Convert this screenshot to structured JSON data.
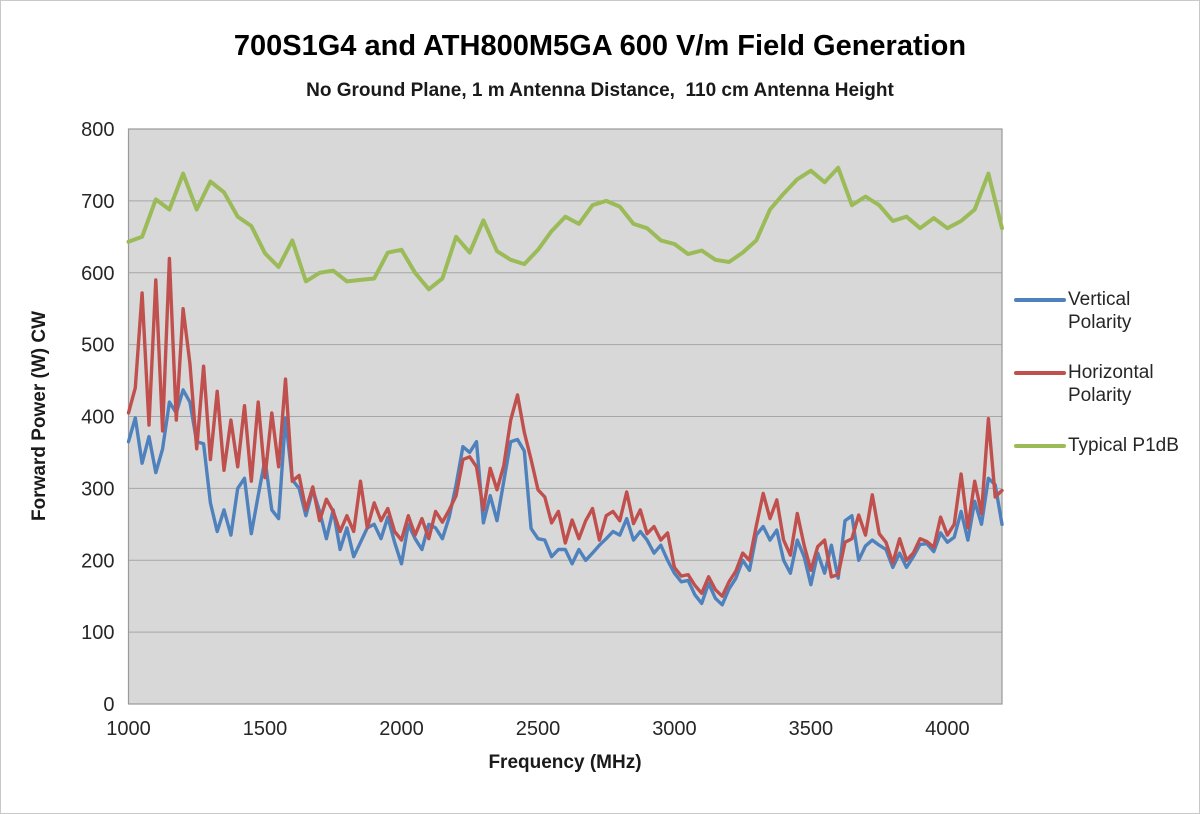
{
  "chart_data": {
    "type": "line",
    "title": "700S1G4 and ATH800M5GA 600 V/m Field Generation",
    "subtitle": "No Ground Plane, 1 m Antenna Distance,  110 cm Antenna Height",
    "xlabel": "Frequency (MHz)",
    "ylabel": "Forward Power (W) CW",
    "xlim": [
      1000,
      4200
    ],
    "ylim": [
      0,
      800
    ],
    "xticks": [
      1000,
      1500,
      2000,
      2500,
      3000,
      3500,
      4000
    ],
    "yticks": [
      0,
      100,
      200,
      300,
      400,
      500,
      600,
      700,
      800
    ],
    "grid": "horizontal",
    "legend_position": "right",
    "colors": {
      "plot_bg": "#d8d8d8",
      "plot_border": "#9a9a9a",
      "gridline": "#a6a6a6",
      "tick_text": "#262626",
      "vertical_polarity": "#4f81bd",
      "horizontal_polarity": "#c0504d",
      "typical_p1db": "#9bbb59"
    },
    "series": [
      {
        "name": "Vertical Polarity",
        "color": "#4f81bd",
        "stroke_width": 3.4,
        "x_start": 1000,
        "x_step": 25,
        "values": [
          365,
          398,
          335,
          372,
          322,
          355,
          420,
          405,
          437,
          420,
          365,
          362,
          280,
          240,
          270,
          235,
          300,
          314,
          237,
          290,
          340,
          270,
          258,
          398,
          312,
          300,
          262,
          298,
          268,
          230,
          270,
          215,
          245,
          205,
          225,
          245,
          250,
          230,
          260,
          225,
          195,
          250,
          230,
          215,
          250,
          245,
          230,
          260,
          305,
          358,
          350,
          365,
          252,
          290,
          255,
          310,
          365,
          368,
          352,
          244,
          230,
          228,
          205,
          215,
          215,
          195,
          215,
          200,
          210,
          221,
          230,
          240,
          235,
          258,
          228,
          240,
          228,
          210,
          221,
          200,
          182,
          170,
          172,
          152,
          140,
          168,
          147,
          138,
          160,
          175,
          200,
          186,
          235,
          247,
          228,
          242,
          200,
          182,
          228,
          205,
          166,
          210,
          182,
          221,
          175,
          255,
          262,
          200,
          220,
          228,
          221,
          215,
          190,
          210,
          190,
          205,
          222,
          223,
          212,
          238,
          225,
          232,
          268,
          228,
          282,
          250,
          314,
          305,
          250
        ]
      },
      {
        "name": "Horizontal Polarity",
        "color": "#c0504d",
        "stroke_width": 3.4,
        "x_start": 1000,
        "x_step": 25,
        "values": [
          405,
          440,
          572,
          388,
          590,
          380,
          620,
          395,
          550,
          474,
          355,
          470,
          340,
          435,
          325,
          395,
          330,
          415,
          310,
          420,
          315,
          405,
          330,
          452,
          310,
          318,
          270,
          302,
          255,
          285,
          268,
          240,
          262,
          240,
          310,
          245,
          280,
          255,
          272,
          240,
          228,
          262,
          235,
          258,
          230,
          268,
          253,
          270,
          290,
          340,
          344,
          330,
          270,
          328,
          298,
          332,
          395,
          430,
          378,
          340,
          298,
          288,
          252,
          268,
          224,
          256,
          230,
          255,
          272,
          228,
          262,
          268,
          255,
          295,
          251,
          270,
          237,
          247,
          228,
          238,
          190,
          178,
          180,
          165,
          154,
          177,
          159,
          150,
          170,
          185,
          210,
          200,
          248,
          293,
          258,
          284,
          228,
          207,
          265,
          221,
          186,
          219,
          228,
          177,
          180,
          225,
          230,
          263,
          235,
          291,
          237,
          225,
          196,
          230,
          200,
          210,
          230,
          226,
          218,
          260,
          235,
          250,
          320,
          245,
          310,
          265,
          397,
          288,
          297
        ]
      },
      {
        "name": "Typical P1dB",
        "color": "#9bbb59",
        "stroke_width": 4,
        "x_start": 1000,
        "x_step": 50,
        "values": [
          643,
          650,
          702,
          688,
          738,
          688,
          727,
          712,
          678,
          665,
          627,
          608,
          645,
          588,
          600,
          603,
          588,
          590,
          592,
          628,
          632,
          600,
          577,
          592,
          650,
          628,
          673,
          630,
          618,
          612,
          632,
          658,
          678,
          668,
          694,
          700,
          692,
          668,
          662,
          645,
          640,
          626,
          631,
          618,
          615,
          628,
          645,
          688,
          710,
          730,
          742,
          726,
          746,
          694,
          706,
          694,
          672,
          678,
          662,
          676,
          662,
          672,
          688,
          738,
          662
        ]
      }
    ]
  }
}
